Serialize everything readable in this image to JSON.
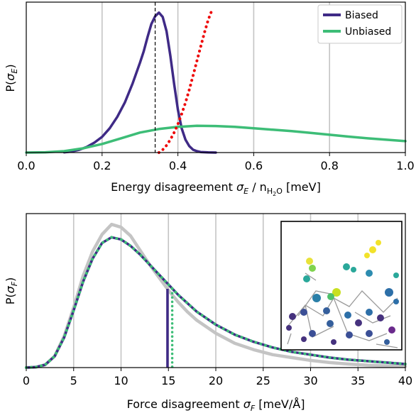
{
  "chart_data": [
    {
      "type": "line",
      "title": "",
      "xlabel": "Energy disagreement σ_E / n_H2O [meV]",
      "ylabel": "P(σ_E)",
      "xlim": [
        0.0,
        1.0
      ],
      "xticks": [
        "0.0",
        "0.2",
        "0.4",
        "0.6",
        "0.8",
        "1.0"
      ],
      "grid": "vertical",
      "legend_position": "top-right",
      "vline_dashed_x": 0.34,
      "series": [
        {
          "name": "Biased",
          "color": "#3f2a86",
          "x": [
            0.1,
            0.12,
            0.14,
            0.16,
            0.18,
            0.2,
            0.22,
            0.24,
            0.26,
            0.28,
            0.3,
            0.31,
            0.32,
            0.33,
            0.34,
            0.35,
            0.36,
            0.37,
            0.38,
            0.39,
            0.4,
            0.41,
            0.42,
            0.43,
            0.44,
            0.45,
            0.46,
            0.48,
            0.5
          ],
          "values": [
            0.002,
            0.008,
            0.02,
            0.04,
            0.07,
            0.11,
            0.17,
            0.25,
            0.35,
            0.48,
            0.63,
            0.71,
            0.81,
            0.9,
            0.955,
            0.98,
            0.95,
            0.85,
            0.68,
            0.48,
            0.3,
            0.17,
            0.09,
            0.045,
            0.02,
            0.01,
            0.004,
            0.001,
            0.0
          ]
        },
        {
          "name": "Unbiased",
          "color": "#3dbd77",
          "x": [
            0.0,
            0.05,
            0.1,
            0.15,
            0.2,
            0.25,
            0.3,
            0.35,
            0.4,
            0.45,
            0.5,
            0.55,
            0.6,
            0.65,
            0.7,
            0.75,
            0.8,
            0.85,
            0.9,
            0.95,
            1.0
          ],
          "values": [
            0.0,
            0.002,
            0.01,
            0.03,
            0.06,
            0.1,
            0.14,
            0.165,
            0.18,
            0.188,
            0.186,
            0.18,
            0.17,
            0.16,
            0.15,
            0.138,
            0.125,
            0.112,
            0.1,
            0.09,
            0.08
          ]
        },
        {
          "name": "",
          "color": "#ee0000",
          "style": "dotted",
          "x": [
            0.35,
            0.36,
            0.37,
            0.38,
            0.39,
            0.4,
            0.41,
            0.42,
            0.43,
            0.44,
            0.45,
            0.46,
            0.47,
            0.48,
            0.49
          ],
          "values": [
            0.0,
            0.02,
            0.05,
            0.09,
            0.14,
            0.2,
            0.27,
            0.35,
            0.44,
            0.54,
            0.64,
            0.74,
            0.84,
            0.93,
            1.0
          ]
        }
      ]
    },
    {
      "type": "line",
      "title": "",
      "xlabel": "Force disagreement σ_F [meV/Å]",
      "ylabel": "P(σ_F)",
      "xlim": [
        0,
        40
      ],
      "xticks": [
        "0",
        "5",
        "10",
        "15",
        "20",
        "25",
        "30",
        "35",
        "40"
      ],
      "grid": "vertical",
      "vlines": [
        {
          "x": 14.9,
          "color": "#3f2a86",
          "style": "solid"
        },
        {
          "x": 15.4,
          "color": "#3dbd77",
          "style": "dotted"
        }
      ],
      "series": [
        {
          "name": "",
          "color": "#c4c4c4",
          "x": [
            0,
            1,
            2,
            3,
            4,
            5,
            6,
            7,
            8,
            9,
            10,
            11,
            12,
            13,
            14,
            15,
            16,
            17,
            18,
            20,
            22,
            24,
            26,
            28,
            30,
            32,
            34,
            36,
            38,
            40
          ],
          "values": [
            0.0,
            0.003,
            0.02,
            0.08,
            0.22,
            0.42,
            0.64,
            0.81,
            0.93,
            1.0,
            0.98,
            0.92,
            0.82,
            0.72,
            0.63,
            0.54,
            0.46,
            0.39,
            0.33,
            0.24,
            0.17,
            0.125,
            0.09,
            0.07,
            0.05,
            0.035,
            0.025,
            0.017,
            0.012,
            0.008
          ]
        },
        {
          "name": "",
          "color": "#3f2a86",
          "x": [
            0,
            1,
            2,
            3,
            4,
            5,
            6,
            7,
            8,
            9,
            10,
            11,
            12,
            13,
            14,
            15,
            16,
            17,
            18,
            20,
            22,
            24,
            26,
            28,
            30,
            32,
            34,
            36,
            38,
            40
          ],
          "values": [
            0.0,
            0.003,
            0.02,
            0.08,
            0.21,
            0.4,
            0.6,
            0.76,
            0.87,
            0.91,
            0.895,
            0.85,
            0.79,
            0.72,
            0.65,
            0.58,
            0.51,
            0.45,
            0.39,
            0.3,
            0.23,
            0.18,
            0.14,
            0.11,
            0.09,
            0.07,
            0.055,
            0.045,
            0.035,
            0.025
          ]
        },
        {
          "name": "",
          "color": "#3dbd77",
          "style": "dotted",
          "x": [
            0,
            1,
            2,
            3,
            4,
            5,
            6,
            7,
            8,
            9,
            10,
            11,
            12,
            13,
            14,
            15,
            16,
            17,
            18,
            20,
            22,
            24,
            26,
            28,
            30,
            32,
            34,
            36,
            38,
            40
          ],
          "values": [
            0.0,
            0.003,
            0.02,
            0.08,
            0.21,
            0.4,
            0.6,
            0.76,
            0.87,
            0.91,
            0.895,
            0.85,
            0.79,
            0.72,
            0.65,
            0.58,
            0.51,
            0.45,
            0.39,
            0.3,
            0.23,
            0.18,
            0.14,
            0.11,
            0.09,
            0.07,
            0.055,
            0.045,
            0.035,
            0.025
          ]
        }
      ]
    }
  ]
}
